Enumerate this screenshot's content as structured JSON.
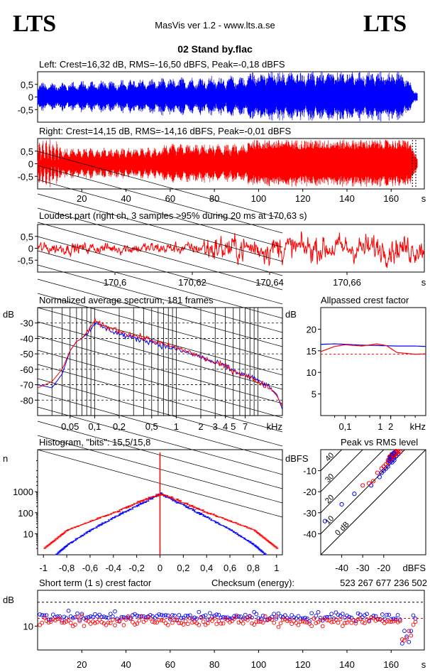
{
  "header": {
    "logo_left": "LTS",
    "logo_right": "LTS",
    "app_title": "MasVis ver 1.2 - www.lts.a.se",
    "file_name": "02 Stand by.flac"
  },
  "colors": {
    "left_channel": "#0000ff",
    "right_channel": "#ff0000",
    "axis": "#000000",
    "background": "#ffffff"
  },
  "chart_data": [
    {
      "id": "left_waveform",
      "type": "area",
      "title": "Left: Crest=16,32 dB, RMS=-16,50 dBFS, Peak=-0,18 dBFS",
      "ylim": [
        -1,
        1
      ],
      "ytick_labels": [
        "0,5",
        "0",
        "-0,5"
      ],
      "yticks": [
        0.5,
        0,
        -0.5
      ],
      "xlim": [
        0,
        175
      ],
      "duration_s": 172,
      "crest_db": 16.32,
      "rms_dbfs": -16.5,
      "peak_dbfs": -0.18,
      "color": "#0000ff"
    },
    {
      "id": "right_waveform",
      "type": "area",
      "title": "Right: Crest=14,15 dB, RMS=-14,16 dBFS, Peak=-0,01 dBFS",
      "ylim": [
        -1,
        1
      ],
      "ytick_labels": [
        "0,5",
        "0",
        "-0,5"
      ],
      "yticks": [
        0.5,
        0,
        -0.5
      ],
      "xlim": [
        0,
        175
      ],
      "xticks": [
        20,
        40,
        60,
        80,
        100,
        120,
        140,
        160
      ],
      "xtick_labels": [
        "20",
        "40",
        "60",
        "80",
        "100",
        "120",
        "140",
        "160"
      ],
      "xunit": "s",
      "duration_s": 172,
      "marker_s": 170.63,
      "crest_db": 14.15,
      "rms_dbfs": -14.16,
      "peak_dbfs": -0.01,
      "color": "#ff0000"
    },
    {
      "id": "loudest_part",
      "type": "line",
      "title": "Loudest part (right ch, 3 samples >95% during 20 ms at 170,63 s)",
      "ylim": [
        -1,
        1
      ],
      "ytick_labels": [
        "0,5",
        "0",
        "-0,5"
      ],
      "yticks": [
        0.5,
        0,
        -0.5
      ],
      "xlim": [
        170.58,
        170.68
      ],
      "xticks": [
        170.6,
        170.62,
        170.64,
        170.66
      ],
      "xtick_labels": [
        "170,6",
        "170,62",
        "170,64",
        "170,66"
      ],
      "xunit": "s",
      "color": "#ff0000"
    },
    {
      "id": "spectrum",
      "type": "line",
      "title": "Normalized average spectrum, 181 frames",
      "ylabel": "dB",
      "ylim": [
        -90,
        -20
      ],
      "yticks": [
        -30,
        -40,
        -50,
        -60,
        -70,
        -80
      ],
      "ytick_labels": [
        "-30",
        "-40",
        "-50",
        "-60",
        "-70",
        "-80"
      ],
      "xlim_khz": [
        0.02,
        20
      ],
      "xscale": "log",
      "xticks_khz": [
        0.05,
        0.1,
        0.2,
        0.5,
        1,
        2,
        3,
        4,
        5,
        7
      ],
      "xtick_labels": [
        "0,05",
        "0,1",
        "0,2",
        "0,5",
        "1",
        "2",
        "3",
        "4",
        "5",
        "7"
      ],
      "xunit": "kHz",
      "series": [
        {
          "channel": "left",
          "color": "#0000ff",
          "points_khz_db": [
            [
              0.02,
              -70
            ],
            [
              0.03,
              -72
            ],
            [
              0.04,
              -63
            ],
            [
              0.05,
              -48
            ],
            [
              0.06,
              -42
            ],
            [
              0.07,
              -40
            ],
            [
              0.08,
              -37
            ],
            [
              0.1,
              -30
            ],
            [
              0.13,
              -33
            ],
            [
              0.2,
              -37
            ],
            [
              0.3,
              -40
            ],
            [
              0.5,
              -42
            ],
            [
              0.7,
              -45
            ],
            [
              1,
              -47
            ],
            [
              1.5,
              -50
            ],
            [
              2,
              -52
            ],
            [
              3,
              -56
            ],
            [
              4,
              -58
            ],
            [
              5,
              -61
            ],
            [
              7,
              -64
            ],
            [
              10,
              -67
            ],
            [
              14,
              -72
            ],
            [
              17,
              -76
            ],
            [
              20,
              -86
            ]
          ]
        },
        {
          "channel": "right",
          "color": "#ff0000",
          "points_khz_db": [
            [
              0.02,
              -72
            ],
            [
              0.03,
              -68
            ],
            [
              0.04,
              -60
            ],
            [
              0.05,
              -48
            ],
            [
              0.06,
              -42
            ],
            [
              0.07,
              -40
            ],
            [
              0.08,
              -36
            ],
            [
              0.1,
              -29
            ],
            [
              0.13,
              -32
            ],
            [
              0.2,
              -35
            ],
            [
              0.3,
              -38
            ],
            [
              0.5,
              -41
            ],
            [
              0.7,
              -44
            ],
            [
              1,
              -46
            ],
            [
              1.5,
              -49
            ],
            [
              2,
              -52
            ],
            [
              3,
              -56
            ],
            [
              4,
              -58
            ],
            [
              5,
              -61
            ],
            [
              7,
              -64
            ],
            [
              10,
              -68
            ],
            [
              14,
              -72
            ],
            [
              17,
              -77
            ],
            [
              20,
              -84
            ]
          ]
        }
      ]
    },
    {
      "id": "allpassed_crest",
      "type": "line",
      "title": "Allpassed crest factor",
      "ylabel": "dB",
      "ylim": [
        0,
        25
      ],
      "yticks": [
        20,
        15,
        10,
        5
      ],
      "ytick_labels": [
        "20",
        "15",
        "10",
        "5"
      ],
      "xscale": "log",
      "xlim_khz": [
        0.02,
        20
      ],
      "xticks_khz": [
        0.1,
        1,
        2
      ],
      "xtick_labels": [
        "0,1",
        "1",
        "2"
      ],
      "xunit": "kHz",
      "reference_db": 14.2,
      "series": [
        {
          "channel": "left",
          "color": "#0000ff",
          "points_khz_db": [
            [
              0.02,
              16.5
            ],
            [
              0.05,
              16.6
            ],
            [
              0.1,
              16.5
            ],
            [
              0.3,
              16.3
            ],
            [
              1,
              16.2
            ],
            [
              3,
              16.1
            ],
            [
              10,
              16.1
            ],
            [
              20,
              16.0
            ]
          ]
        },
        {
          "channel": "right",
          "color": "#ff0000",
          "points_khz_db": [
            [
              0.02,
              14.8
            ],
            [
              0.05,
              16.0
            ],
            [
              0.1,
              16.4
            ],
            [
              0.3,
              16.1
            ],
            [
              0.8,
              16.6
            ],
            [
              1.5,
              16.2
            ],
            [
              3,
              14.6
            ],
            [
              10,
              14.2
            ],
            [
              20,
              14.3
            ]
          ]
        }
      ]
    },
    {
      "id": "histogram",
      "type": "line",
      "title": "Histogram, \"bits\": 15,5/15,8",
      "ylabel": "n",
      "yscale": "log",
      "ylim": [
        1,
        100000
      ],
      "yticks": [
        1000,
        100,
        10
      ],
      "ytick_labels": [
        "1000",
        "100",
        "10"
      ],
      "xlim": [
        -1.05,
        1.05
      ],
      "xticks": [
        -1,
        -0.8,
        -0.6,
        -0.4,
        -0.2,
        0,
        0.2,
        0.4,
        0.6,
        0.8,
        1
      ],
      "xtick_labels": [
        "-1",
        "-0,8",
        "-0,6",
        "-0,4",
        "-0,2",
        "0",
        "0,2",
        "0,4",
        "0,6",
        "0,8",
        "1"
      ],
      "series": [
        {
          "channel": "left",
          "color": "#0000ff",
          "points": [
            [
              -0.9,
              1
            ],
            [
              -0.8,
              3
            ],
            [
              -0.6,
              15
            ],
            [
              -0.4,
              60
            ],
            [
              -0.2,
              220
            ],
            [
              0,
              800
            ],
            [
              0.2,
              220
            ],
            [
              0.4,
              60
            ],
            [
              0.6,
              15
            ],
            [
              0.8,
              3
            ],
            [
              0.9,
              1
            ]
          ]
        },
        {
          "channel": "right",
          "color": "#ff0000",
          "points": [
            [
              -1.0,
              2
            ],
            [
              -0.8,
              15
            ],
            [
              -0.6,
              40
            ],
            [
              -0.4,
              100
            ],
            [
              -0.2,
              300
            ],
            [
              0,
              800
            ],
            [
              0.2,
              300
            ],
            [
              0.4,
              100
            ],
            [
              0.6,
              40
            ],
            [
              0.8,
              15
            ],
            [
              1.0,
              2
            ]
          ]
        }
      ]
    },
    {
      "id": "peak_vs_rms",
      "type": "scatter",
      "title": "Peak vs RMS level",
      "ylabel": "dBFS",
      "xlabel": "dBFS",
      "xlim": [
        -50,
        0
      ],
      "ylim": [
        -50,
        0
      ],
      "xticks": [
        -40,
        -30,
        -20
      ],
      "xtick_labels": [
        "-40",
        "-30",
        "-20"
      ],
      "yticks": [
        -10,
        -20,
        -30,
        -40
      ],
      "ytick_labels": [
        "-10",
        "-20",
        "-30",
        "-40"
      ],
      "diagonal_labels": [
        "0 dB",
        "10",
        "20",
        "30",
        "40"
      ],
      "series": [
        {
          "channel": "left",
          "color": "#0000ff",
          "points": [
            [
              -48,
              -34
            ],
            [
              -40,
              -26
            ],
            [
              -34,
              -21
            ],
            [
              -26,
              -17
            ],
            [
              -22,
              -13
            ],
            [
              -20,
              -10
            ],
            [
              -18,
              -8
            ],
            [
              -17,
              -6
            ],
            [
              -16,
              -5
            ],
            [
              -15,
              -4
            ],
            [
              -14,
              -3
            ],
            [
              -13,
              -2
            ],
            [
              -12,
              -1
            ],
            [
              -19,
              -9
            ],
            [
              -21,
              -11
            ],
            [
              -16,
              -6
            ],
            [
              -15,
              -5
            ]
          ]
        },
        {
          "channel": "right",
          "color": "#ff0000",
          "points": [
            [
              -30,
              -17
            ],
            [
              -27,
              -16
            ],
            [
              -25,
              -15
            ],
            [
              -23,
              -11
            ],
            [
              -21,
              -9
            ],
            [
              -19,
              -7
            ],
            [
              -18,
              -6
            ],
            [
              -17,
              -5
            ],
            [
              -16,
              -4
            ],
            [
              -15,
              -3
            ],
            [
              -14,
              -2
            ],
            [
              -13,
              -1
            ],
            [
              -12,
              -1
            ],
            [
              -20,
              -8
            ],
            [
              -18,
              -5
            ],
            [
              -16,
              -3
            ],
            [
              -14,
              -1
            ]
          ]
        }
      ]
    },
    {
      "id": "short_term_crest",
      "type": "scatter",
      "title": "Short term (1 s) crest factor",
      "checksum_label": "Checksum (energy):",
      "checksum_value": "523 267 677 236 502",
      "ylabel": "dB",
      "ylim": [
        6,
        16
      ],
      "yticks": [
        10
      ],
      "ytick_labels": [
        "10"
      ],
      "xlim": [
        0,
        175
      ],
      "xticks": [
        20,
        40,
        60,
        80,
        100,
        120,
        140,
        160
      ],
      "xtick_labels": [
        "20",
        "40",
        "60",
        "80",
        "100",
        "120",
        "140",
        "160"
      ],
      "xunit": "s",
      "ref_lines_db": [
        14,
        11.3
      ],
      "series": [
        {
          "channel": "left",
          "color": "#0000ff",
          "mean_db": 11.6,
          "spread_db": 0.8
        },
        {
          "channel": "right",
          "color": "#ff0000",
          "mean_db": 10.8,
          "spread_db": 0.9
        }
      ]
    }
  ]
}
